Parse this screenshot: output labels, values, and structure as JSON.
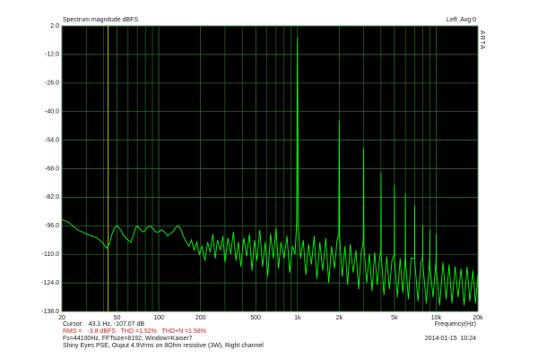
{
  "chart_data": {
    "type": "line",
    "title": "Spectrum magnitude dBFS",
    "channel_label": "Left  Avg:0",
    "brand": "ARTA",
    "xlabel": "Frequency(Hz)",
    "xscale": "log",
    "grid": true,
    "background": "#000000",
    "grid_color": "#2f7a2f",
    "xlim": [
      20,
      20000
    ],
    "ylim": [
      -138,
      2
    ],
    "yticks": [
      {
        "value": 2,
        "label": "2.0"
      },
      {
        "value": -12,
        "label": "-12.0"
      },
      {
        "value": -26,
        "label": "-26.0"
      },
      {
        "value": -40,
        "label": "-40.0"
      },
      {
        "value": -54,
        "label": "-54.0"
      },
      {
        "value": -68,
        "label": "-68.0"
      },
      {
        "value": -82,
        "label": "-82.0"
      },
      {
        "value": -96,
        "label": "-96.0"
      },
      {
        "value": -110,
        "label": "-110.0"
      },
      {
        "value": -124,
        "label": "-124.0"
      },
      {
        "value": -138,
        "label": "-138.0"
      }
    ],
    "xticks": [
      20,
      50,
      100,
      200,
      500,
      {
        "value": 1000,
        "label": "1k"
      },
      {
        "value": 2000,
        "label": "2k"
      },
      {
        "value": 5000,
        "label": "5k"
      },
      {
        "value": 10000,
        "label": "10k"
      },
      {
        "value": 20000,
        "label": "20k"
      }
    ],
    "xminor": [
      30,
      40,
      60,
      70,
      80,
      90,
      300,
      400,
      600,
      700,
      800,
      900,
      3000,
      4000,
      6000,
      7000,
      8000,
      9000
    ],
    "cursor_x": 43.1,
    "cursor_color": "#b8b800",
    "series": [
      {
        "name": "Right channel",
        "color": "#00ff00",
        "x": [
          20,
          22,
          24,
          26,
          28,
          30,
          33,
          36,
          39,
          42,
          44,
          46,
          48,
          50,
          53,
          56,
          60,
          63,
          66,
          68,
          70,
          74,
          78,
          82,
          86,
          90,
          95,
          100,
          105,
          110,
          116,
          120,
          126,
          132,
          138,
          145,
          150,
          158,
          165,
          172,
          180,
          188,
          196,
          205,
          215,
          225,
          235,
          245,
          255,
          265,
          278,
          290,
          300,
          315,
          330,
          345,
          360,
          375,
          390,
          410,
          430,
          450,
          470,
          490,
          510,
          535,
          560,
          585,
          610,
          640,
          670,
          700,
          730,
          760,
          800,
          840,
          880,
          920,
          960,
          985,
          1000,
          1015,
          1050,
          1100,
          1150,
          1200,
          1260,
          1320,
          1380,
          1450,
          1520,
          1600,
          1680,
          1760,
          1850,
          1930,
          1985,
          2000,
          2015,
          2100,
          2200,
          2300,
          2400,
          2520,
          2640,
          2760,
          2880,
          2985,
          3000,
          3015,
          3150,
          3300,
          3450,
          3600,
          3760,
          3900,
          3985,
          4000,
          4015,
          4200,
          4400,
          4600,
          4800,
          4985,
          5000,
          5015,
          5250,
          5500,
          5750,
          5985,
          6000,
          6015,
          6300,
          6600,
          6985,
          7000,
          7015,
          7400,
          7800,
          7985,
          8000,
          8015,
          8500,
          8985,
          9000,
          9015,
          9500,
          9985,
          10000,
          10015,
          10600,
          11200,
          11800,
          12400,
          13000,
          13700,
          14400,
          15100,
          15900,
          16700,
          17500,
          18400,
          19200,
          20000
        ],
        "values": [
          -93,
          -94,
          -96,
          -98,
          -99,
          -100,
          -101,
          -102,
          -104,
          -107,
          -105,
          -100,
          -97,
          -96,
          -98,
          -101,
          -103,
          -104,
          -100,
          -97,
          -96,
          -98,
          -99,
          -97,
          -96,
          -97,
          -99,
          -99,
          -98,
          -99,
          -101,
          -100,
          -99,
          -97,
          -96,
          -98,
          -101,
          -104,
          -106,
          -103,
          -108,
          -104,
          -110,
          -106,
          -113,
          -104,
          -109,
          -100,
          -112,
          -103,
          -108,
          -101,
          -114,
          -102,
          -110,
          -99,
          -113,
          -104,
          -116,
          -102,
          -111,
          -100,
          -118,
          -103,
          -113,
          -98,
          -116,
          -104,
          -121,
          -100,
          -112,
          -97,
          -117,
          -104,
          -112,
          -101,
          -119,
          -106,
          -110,
          -95,
          -3.8,
          -96,
          -112,
          -103,
          -120,
          -105,
          -115,
          -101,
          -122,
          -104,
          -118,
          -102,
          -124,
          -106,
          -117,
          -103,
          -100,
          -44.5,
          -102,
          -121,
          -106,
          -125,
          -105,
          -119,
          -108,
          -127,
          -109,
          -104,
          -58,
          -106,
          -124,
          -110,
          -128,
          -109,
          -125,
          -112,
          -108,
          -70,
          -110,
          -130,
          -111,
          -127,
          -113,
          -110,
          -76,
          -112,
          -131,
          -112,
          -129,
          -111,
          -80,
          -113,
          -132,
          -112,
          -112,
          -86,
          -114,
          -133,
          -113,
          -112,
          -96,
          -115,
          -134,
          -112,
          -98,
          -116,
          -131,
          -113,
          -100,
          -117,
          -135,
          -114,
          -132,
          -115,
          -134,
          -116,
          -131,
          -117,
          -135,
          -116,
          -133,
          -118,
          -134,
          -120
        ]
      }
    ],
    "cursor_text": "Cursor:   43.1 Hz, -107.07 dB",
    "rms_text": "RMS =   -3.8 dBFS   THD =1.52%   THD+N =1.58%",
    "fft_text": "Fs=44100Hz, FFTsize=8192, Window=Kaiser7",
    "description": "Shiny Eyes PSE, Ouput 4.9Vrms on 8Ohm resistive (3W), Right channel",
    "timestamp": "2014-01-15  10:24"
  }
}
